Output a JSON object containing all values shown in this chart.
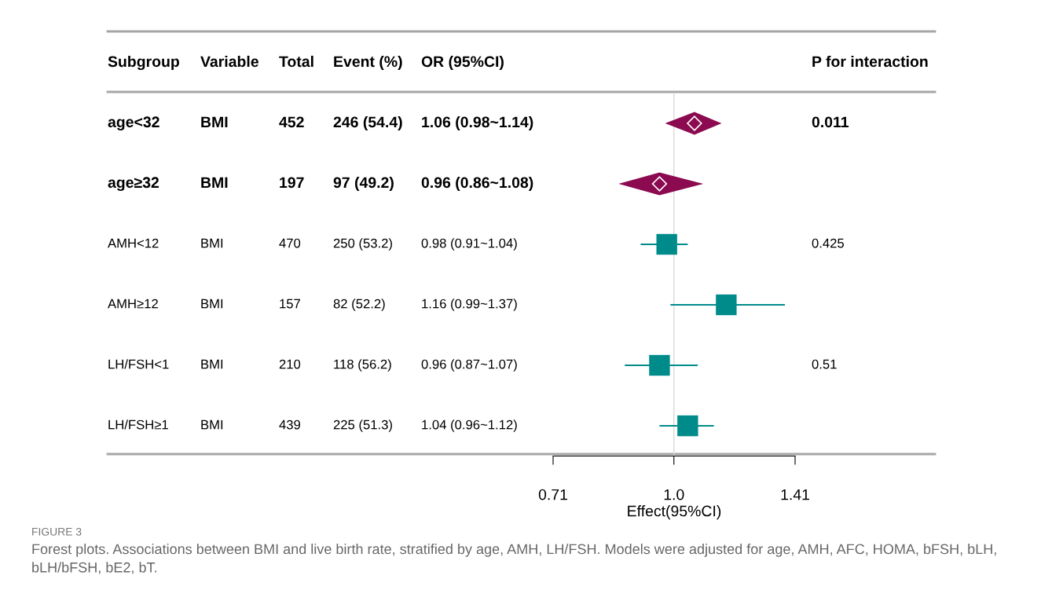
{
  "chart_data": [
    {
      "type": "other",
      "categories": [
        "Subgroup",
        "Variable",
        "Total",
        "Event (%)",
        "OR (95%CI)",
        "P for interaction"
      ],
      "cell_labels": [
        [
          "age<32",
          "BMI",
          "452",
          "246 (54.4)",
          "1.06 (0.98~1.14)",
          "0.011"
        ],
        [
          "age≥32",
          "BMI",
          "197",
          "97 (49.2)",
          "0.96 (0.86~1.08)",
          null
        ],
        [
          "AMH<12",
          "BMI",
          "470",
          "250 (53.2)",
          "0.98 (0.91~1.04)",
          "0.425"
        ],
        [
          "AMH≥12",
          "BMI",
          "157",
          "82 (52.2)",
          "1.16 (0.99~1.37)",
          null
        ],
        [
          "LH/FSH<1",
          "BMI",
          "210",
          "118 (56.2)",
          "0.96 (0.87~1.07)",
          "0.51"
        ],
        [
          "LH/FSH≥1",
          "BMI",
          "439",
          "225 (51.3)",
          "1.04 (0.96~1.12)",
          null
        ]
      ]
    },
    {
      "type": "scatter",
      "orientation": "horizontal",
      "categories": [
        null,
        null,
        null,
        null,
        null,
        null
      ],
      "series": [
        {
          "color": "#8b0a50",
          "marker": "diamond",
          "values": [
            1.06,
            0.96,
            null,
            null,
            null,
            null
          ],
          "errors": [
            [
              0.98,
              1.14
            ],
            [
              0.86,
              1.08
            ],
            null,
            null,
            null,
            null
          ]
        },
        {
          "color": "#008b8b",
          "marker": "square",
          "values": [
            null,
            null,
            0.98,
            1.16,
            0.96,
            1.04
          ],
          "errors": [
            null,
            null,
            [
              0.91,
              1.04
            ],
            [
              0.99,
              1.37
            ],
            [
              0.87,
              1.07
            ],
            [
              0.96,
              1.12
            ]
          ]
        }
      ],
      "log": "x",
      "xlim": [
        0.71,
        1.41
      ],
      "xticks": [
        {
          "value": 0.71,
          "label": "0.71"
        },
        {
          "value": 1.0,
          "label": "1.0"
        },
        {
          "value": 1.41,
          "label": "1.41"
        }
      ],
      "xlabel": "Effect(95%CI)",
      "grid": false,
      "ref_lines": [
        {
          "axis": "x",
          "value": 1.0,
          "color": "#d9d9d9"
        }
      ],
      "annotations": [
        "FIGURE 3",
        "Forest plots. Associations between BMI and live birth rate, stratified by age, AMH, LH/FSH. Models were adjusted for age, AMH, AFC, HOMA, bFSH, bLH, bLH/bFSH, bE2, bT."
      ]
    }
  ]
}
